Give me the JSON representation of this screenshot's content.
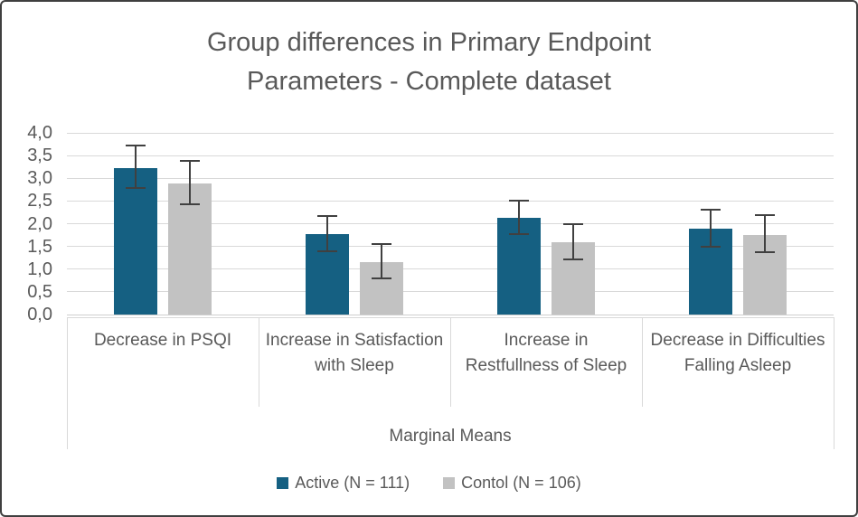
{
  "title": {
    "text": "Group differences in Primary Endpoint Parameters - Complete dataset",
    "lines": [
      "Group differences in Primary Endpoint",
      "Parameters - Complete dataset"
    ]
  },
  "chart_data": {
    "type": "bar",
    "title": "Group differences in Primary Endpoint Parameters - Complete dataset",
    "categories": [
      "Decrease in PSQI",
      "Increase in Satisfaction with Sleep",
      "Increase in Restfullness of Sleep",
      "Decrease in Difficulties Falling Asleep"
    ],
    "category_axis_title": "Marginal Means",
    "series": [
      {
        "name": "Active (N = 111)",
        "color": "#156082",
        "values": [
          3.22,
          1.77,
          2.13,
          1.89
        ],
        "error_low": [
          2.78,
          1.4,
          1.78,
          1.5
        ],
        "error_high": [
          3.72,
          2.16,
          2.5,
          2.31
        ]
      },
      {
        "name": "Contol (N = 106)",
        "color": "#c2c2c2",
        "values": [
          2.89,
          1.15,
          1.6,
          1.76
        ],
        "error_low": [
          2.42,
          0.79,
          1.22,
          1.38
        ],
        "error_high": [
          3.38,
          1.56,
          2.0,
          2.18
        ]
      }
    ],
    "ylim": [
      0,
      4
    ],
    "ytick_step": 0.5,
    "ytick_labels": [
      "0,0",
      "0,5",
      "1,0",
      "1,5",
      "2,0",
      "2,5",
      "3,0",
      "3,5",
      "4,0"
    ],
    "grid": true,
    "legend_position": "bottom",
    "decimal_separator": ",",
    "colors": {
      "text": "#595959",
      "gridline": "#d9d9d9",
      "error_bar": "#404040",
      "frame_border": "#3f3f3f"
    }
  },
  "legend": {
    "items": [
      {
        "label": "Active (N = 111)",
        "color": "#156082"
      },
      {
        "label": "Contol (N = 106)",
        "color": "#c2c2c2"
      }
    ]
  }
}
